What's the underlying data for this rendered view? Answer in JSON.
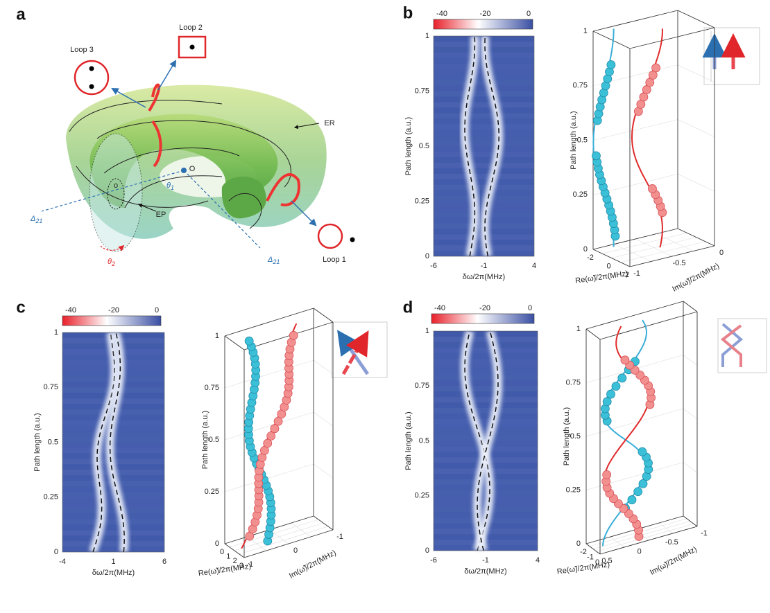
{
  "a": {
    "label": "a",
    "loop1": "Loop 1",
    "loop2": "Loop 2",
    "loop3": "Loop 3",
    "er": "ER",
    "ep": "EP",
    "o_big": "O",
    "o_small": "o",
    "theta1": {
      "symbol": "θ",
      "sub": "1"
    },
    "theta2": {
      "symbol": "θ",
      "sub": "2"
    },
    "delta_left": {
      "symbol": "Δ",
      "sub": "21"
    },
    "delta_right": {
      "symbol": "Δ",
      "sub": "21"
    }
  },
  "b": {
    "label": "b",
    "colorbar_ticks": [
      -40,
      -20,
      0
    ],
    "map": {
      "xticks": [
        -6,
        -1,
        4
      ],
      "yticks": [
        0,
        0.25,
        0.5,
        0.75,
        1
      ],
      "xlabel": "δω/2π(MHz)",
      "ylabel": "Path length (a.u.)"
    },
    "plot3d": {
      "zticks": [
        0,
        0.25,
        0.5,
        0.75,
        1
      ],
      "re_ticks": [
        -2,
        0,
        2
      ],
      "im_ticks": [
        -1,
        -0.5,
        0
      ],
      "re_label": "Re(ω̃)/2π(MHz)",
      "im_label": "Im(ω̃)/2π(MHz)",
      "zlabel": "Path length (a.u.)"
    }
  },
  "c": {
    "label": "c",
    "colorbar_ticks": [
      -40,
      -20,
      0
    ],
    "map": {
      "xticks": [
        -4,
        1,
        6
      ],
      "yticks": [
        0,
        0.25,
        0.5,
        0.75,
        1
      ],
      "xlabel": "δω/2π(MHz)",
      "ylabel": "Path length (a.u.)"
    },
    "plot3d": {
      "zticks": [
        0,
        0.25,
        0.5,
        0.75,
        1
      ],
      "re_ticks": [
        0,
        1,
        2,
        3
      ],
      "im_ticks": [
        1,
        0,
        -1
      ],
      "re_label": "Re(ω̃)/2π(MHz)",
      "im_label": "Im(ω̃)/2π(MHz)",
      "zlabel": "Path length (a.u.)"
    }
  },
  "d": {
    "label": "d",
    "colorbar_ticks": [
      -40,
      -20,
      0
    ],
    "map": {
      "xticks": [
        -6,
        -1,
        4
      ],
      "yticks": [
        0,
        0.25,
        0.5,
        0.75,
        1
      ],
      "xlabel": "δω/2π(MHz)",
      "ylabel": "Path length (a.u.)"
    },
    "plot3d": {
      "zticks": [
        0,
        0.25,
        0.5,
        0.75,
        1
      ],
      "re_ticks": [
        -2,
        -1,
        0
      ],
      "im_ticks": [
        0.5,
        0,
        -0.5,
        -1
      ],
      "re_label": "Re(ω̃)/2π(MHz)",
      "im_label": "Im(ω̃)/2π(MHz)",
      "zlabel": "Path length (a.u.)"
    }
  }
}
